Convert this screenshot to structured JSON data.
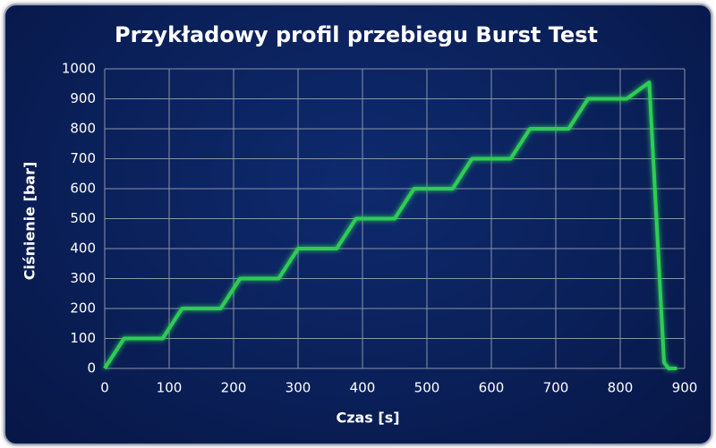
{
  "chart_data": {
    "type": "line",
    "title": "Przykładowy profil przebiegu Burst Test",
    "x_label": "Czas [s]",
    "y_label": "Ciśnienie [bar]",
    "x": [
      0,
      30,
      90,
      120,
      180,
      210,
      270,
      300,
      360,
      390,
      450,
      480,
      540,
      570,
      630,
      660,
      720,
      750,
      810,
      845,
      868,
      875,
      888
    ],
    "series": [
      {
        "name": "Ciśnienie",
        "color": "#2ecc55",
        "values": [
          0,
          100,
          100,
          200,
          200,
          300,
          300,
          400,
          400,
          500,
          500,
          600,
          600,
          700,
          700,
          800,
          800,
          900,
          900,
          955,
          20,
          0,
          0
        ]
      }
    ],
    "xlim": [
      0,
      900
    ],
    "xticks": [
      0,
      100,
      200,
      300,
      400,
      500,
      600,
      700,
      800,
      900
    ],
    "ylim": [
      0,
      1000
    ],
    "yticks": [
      0,
      100,
      200,
      300,
      400,
      500,
      600,
      700,
      800,
      900,
      1000
    ],
    "grid": true
  }
}
